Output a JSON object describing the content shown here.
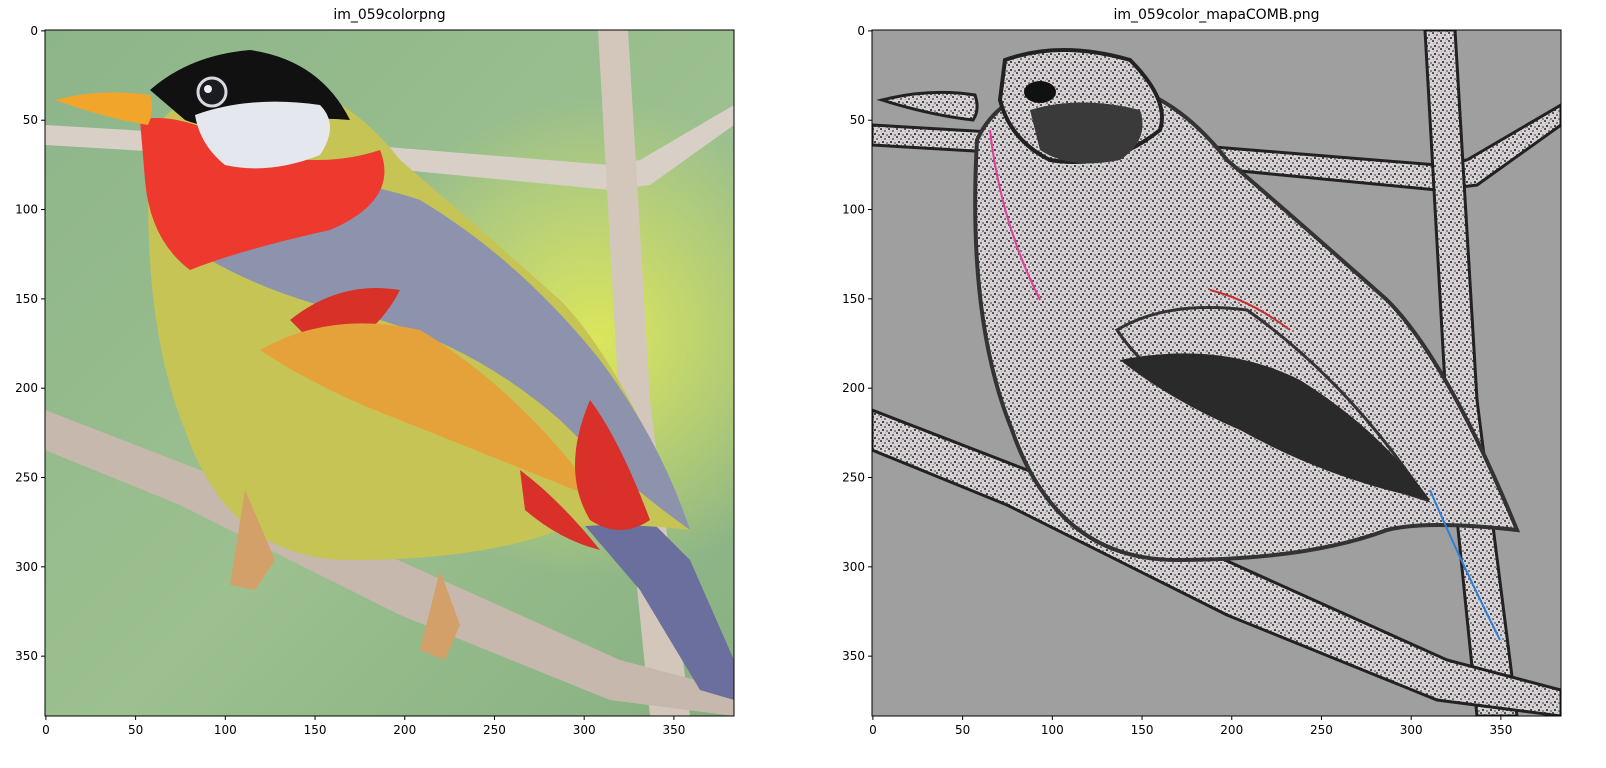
{
  "chart_data": [
    {
      "type": "image",
      "title": "im_059colorpng",
      "x_ticks": [
        0,
        50,
        100,
        150,
        200,
        250,
        300,
        350
      ],
      "y_ticks": [
        0,
        50,
        100,
        150,
        200,
        250,
        300,
        350
      ],
      "xlim": [
        -0.5,
        383.5
      ],
      "ylim": [
        383.5,
        -0.5
      ],
      "image_content": "color photograph of a bird perched on a branch"
    },
    {
      "type": "image",
      "title": "im_059color_mapaCOMB.png",
      "x_ticks": [
        0,
        50,
        100,
        150,
        200,
        250,
        300,
        350
      ],
      "y_ticks": [
        0,
        50,
        100,
        150,
        200,
        250,
        300,
        350
      ],
      "xlim": [
        -0.5,
        383.5
      ],
      "ylim": [
        383.5,
        -0.5
      ],
      "image_content": "edge map of the same bird on gray background"
    }
  ]
}
